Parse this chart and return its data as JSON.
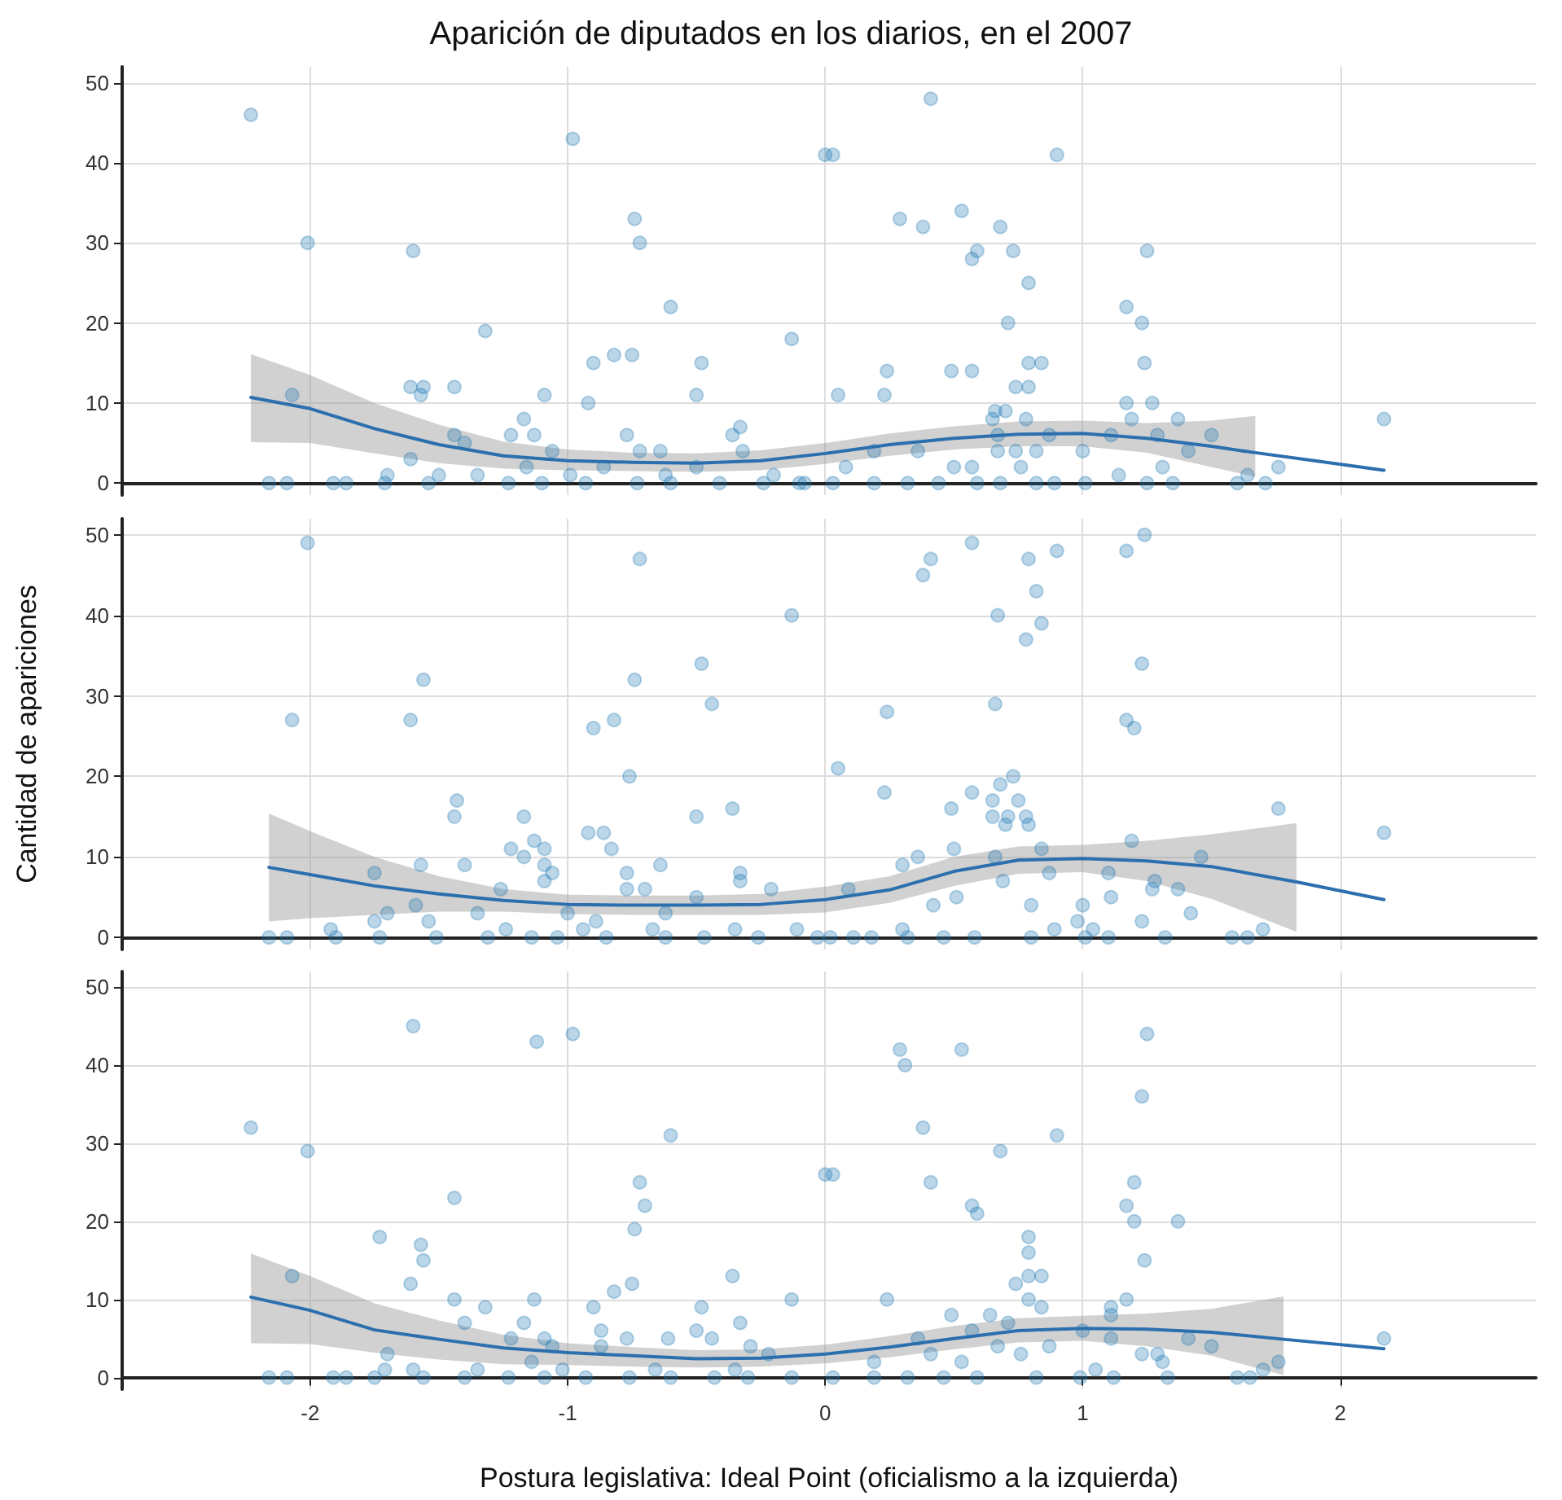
{
  "chart_data": [
    {
      "type": "scatter",
      "title": "Aparición de diputados en los diarios, en el 2007",
      "xlim": [
        -2.73,
        2.76
      ],
      "xticks": [
        -2,
        -1,
        0,
        1,
        2
      ],
      "ylim": [
        -1.5,
        52
      ],
      "yticks": [
        0,
        10,
        20,
        30,
        40,
        50
      ],
      "grid": true,
      "tick_labels": "y",
      "series": [
        {
          "color": "#1f77b4",
          "marker": "circle",
          "x": [
            -2.23,
            -0.98,
            0.0,
            -0.74,
            -0.72,
            -2.01,
            -1.6,
            -0.6,
            -1.32,
            -0.13,
            -0.82,
            -0.75,
            -0.9,
            -0.48,
            -2.07,
            -1.61,
            -1.56,
            -1.57,
            -1.44,
            -1.09,
            -0.5,
            -0.92,
            -1.17,
            -1.22,
            -1.13,
            -1.44,
            -0.77,
            -0.36,
            -0.33,
            -1.4,
            -1.61,
            -1.06,
            -0.72,
            -0.64,
            -0.32,
            -1.35,
            -1.16,
            -0.86,
            -0.5,
            -2.16,
            -2.09,
            -1.91,
            -1.86,
            -1.71,
            -1.54,
            -1.23,
            -1.1,
            -0.93,
            -0.73,
            -0.6,
            -0.41,
            -0.24,
            -0.1,
            -1.7,
            -1.5,
            -0.99,
            -0.62,
            -0.2,
            0.41,
            0.03,
            0.9,
            0.29,
            0.38,
            0.53,
            0.68,
            0.57,
            0.59,
            0.73,
            1.25,
            0.79,
            1.17,
            1.23,
            0.71,
            0.79,
            0.84,
            1.24,
            0.24,
            0.49,
            0.57,
            0.74,
            0.79,
            0.05,
            0.23,
            1.17,
            1.27,
            0.66,
            0.7,
            0.78,
            1.19,
            1.37,
            2.17,
            0.65,
            0.67,
            0.87,
            1.11,
            1.29,
            1.5,
            0.19,
            0.36,
            0.67,
            0.74,
            0.82,
            1.0,
            1.41,
            0.08,
            0.5,
            0.57,
            0.76,
            1.31,
            1.76,
            1.64,
            1.14,
            -0.08,
            0.03,
            0.19,
            0.32,
            0.44,
            0.59,
            0.68,
            0.82,
            0.89,
            1.01,
            1.25,
            1.35,
            1.6,
            1.71
          ],
          "values": [
            46,
            43,
            41,
            33,
            30,
            30,
            29,
            22,
            19,
            18,
            16,
            16,
            15,
            15,
            11,
            12,
            12,
            11,
            12,
            11,
            11,
            10,
            8,
            6,
            6,
            6,
            6,
            6,
            7,
            5,
            3,
            4,
            4,
            4,
            4,
            1,
            2,
            2,
            2,
            0,
            0,
            0,
            0,
            0,
            0,
            0,
            0,
            0,
            0,
            0,
            0,
            0,
            0,
            1,
            1,
            1,
            1,
            1,
            48,
            41,
            41,
            33,
            32,
            34,
            32,
            28,
            29,
            29,
            29,
            25,
            22,
            20,
            20,
            15,
            15,
            15,
            14,
            14,
            14,
            12,
            12,
            11,
            11,
            10,
            10,
            9,
            9,
            8,
            8,
            8,
            8,
            8,
            6,
            6,
            6,
            6,
            6,
            4,
            4,
            4,
            4,
            4,
            4,
            4,
            2,
            2,
            2,
            2,
            2,
            2,
            1,
            1,
            0,
            0,
            0,
            0,
            0,
            0,
            0,
            0,
            0,
            0,
            0,
            0,
            0,
            0
          ]
        },
        {
          "type": "line",
          "color": "#2c6fae",
          "x": [
            -2.23,
            -2,
            -1.75,
            -1.5,
            -1.25,
            -1,
            -0.75,
            -0.5,
            -0.25,
            0,
            0.25,
            0.5,
            0.75,
            1,
            1.25,
            1.5,
            1.67,
            1.9,
            2.17
          ],
          "values": [
            10.7,
            9.3,
            6.8,
            4.8,
            3.4,
            2.8,
            2.6,
            2.5,
            2.8,
            3.7,
            4.8,
            5.6,
            6.1,
            6.2,
            5.6,
            4.6,
            3.8,
            2.8,
            1.6
          ],
          "upper": [
            16.1,
            13.5,
            10,
            7.3,
            5.2,
            4.2,
            3.8,
            3.7,
            4.1,
            5.0,
            6.2,
            7.1,
            7.7,
            7.8,
            7.5,
            7.8,
            8.4,
            null,
            null
          ],
          "lower": [
            5.1,
            5.0,
            3.7,
            2.5,
            1.8,
            1.6,
            1.5,
            1.4,
            1.6,
            2.4,
            3.4,
            4.2,
            4.6,
            4.6,
            3.8,
            2.0,
            0.8,
            null,
            null
          ]
        }
      ]
    },
    {
      "type": "scatter",
      "ylabel": "Cantidad de apariciones",
      "xlim": [
        -2.73,
        2.76
      ],
      "xticks": [
        -2,
        -1,
        0,
        1,
        2
      ],
      "ylim": [
        -1.5,
        52
      ],
      "yticks": [
        0,
        10,
        20,
        30,
        40,
        50
      ],
      "grid": true,
      "tick_labels": "y",
      "series": [
        {
          "color": "#1f77b4",
          "marker": "circle",
          "x": [
            -2.01,
            -0.72,
            -0.13,
            -1.56,
            -0.74,
            -0.48,
            -0.44,
            -2.07,
            -1.61,
            -0.9,
            -0.82,
            -0.76,
            -1.43,
            -1.44,
            -1.17,
            -0.5,
            -0.36,
            -0.92,
            -0.86,
            -0.83,
            -1.22,
            -1.13,
            -1.09,
            -1.17,
            -1.57,
            -1.4,
            -0.64,
            -1.75,
            -1.09,
            -1.06,
            -1.09,
            -0.77,
            -0.33,
            -0.33,
            -1.26,
            -0.77,
            -0.7,
            -0.21,
            -0.5,
            -1.35,
            -1.7,
            -1.59,
            -1.0,
            -1.75,
            -1.54,
            -0.89,
            -0.62,
            -2.16,
            -2.09,
            -1.9,
            -1.73,
            -1.51,
            -1.31,
            -1.14,
            -1.04,
            -0.85,
            -0.62,
            -0.47,
            -0.26,
            -0.03,
            -1.92,
            -1.24,
            -0.94,
            -0.67,
            -0.35,
            -0.11,
            1.24,
            1.17,
            0.57,
            0.41,
            0.38,
            0.79,
            0.9,
            0.82,
            0.67,
            0.84,
            0.78,
            1.23,
            0.24,
            0.66,
            1.17,
            1.2,
            0.05,
            0.23,
            0.73,
            0.68,
            0.57,
            0.49,
            0.65,
            0.65,
            0.71,
            0.75,
            0.78,
            0.79,
            0.7,
            1.76,
            2.17,
            1.19,
            0.5,
            0.84,
            1.46,
            0.36,
            0.3,
            0.66,
            0.87,
            1.1,
            0.09,
            1.28,
            1.27,
            1.37,
            0.69,
            0.51,
            0.8,
            1.0,
            1.11,
            1.42,
            1.23,
            1.7,
            0.98,
            0.42,
            0.02,
            0.11,
            0.18,
            0.32,
            0.46,
            0.58,
            0.8,
            1.01,
            1.1,
            1.32,
            1.58,
            1.64,
            0.3,
            0.89,
            1.04
          ],
          "values": [
            49,
            47,
            40,
            32,
            32,
            34,
            29,
            27,
            27,
            26,
            27,
            20,
            17,
            15,
            15,
            15,
            16,
            13,
            13,
            11,
            11,
            12,
            11,
            10,
            9,
            9,
            9,
            8,
            9,
            8,
            7,
            8,
            8,
            7,
            6,
            6,
            6,
            6,
            5,
            3,
            3,
            4,
            3,
            2,
            2,
            2,
            3,
            0,
            0,
            0,
            0,
            0,
            0,
            0,
            0,
            0,
            0,
            0,
            0,
            0,
            1,
            1,
            1,
            1,
            1,
            1,
            50,
            48,
            49,
            47,
            45,
            47,
            48,
            43,
            40,
            39,
            37,
            34,
            28,
            29,
            27,
            26,
            21,
            18,
            20,
            19,
            18,
            16,
            17,
            15,
            15,
            17,
            15,
            14,
            14,
            16,
            13,
            12,
            11,
            11,
            10,
            10,
            9,
            10,
            8,
            8,
            6,
            7,
            6,
            6,
            7,
            5,
            4,
            4,
            5,
            3,
            2,
            1,
            2,
            4,
            0,
            0,
            0,
            0,
            0,
            0,
            0,
            0,
            0,
            0,
            0,
            0,
            1,
            1,
            1
          ]
        },
        {
          "type": "line",
          "color": "#2c6fae",
          "x": [
            -2.16,
            -2,
            -1.75,
            -1.5,
            -1.25,
            -1,
            -0.75,
            -0.5,
            -0.25,
            0,
            0.25,
            0.5,
            0.75,
            1,
            1.25,
            1.5,
            1.83,
            2.17
          ],
          "values": [
            8.7,
            7.8,
            6.4,
            5.4,
            4.6,
            4.1,
            4.0,
            4.0,
            4.1,
            4.7,
            5.9,
            8.2,
            9.6,
            9.8,
            9.5,
            8.8,
            6.9,
            4.7
          ],
          "upper": [
            15.4,
            13.2,
            10.0,
            7.6,
            6.0,
            5.3,
            5.2,
            5.2,
            5.4,
            6.3,
            7.6,
            10.0,
            11.3,
            11.5,
            12.0,
            12.8,
            14.2,
            null
          ],
          "lower": [
            2.0,
            2.4,
            2.8,
            3.2,
            3.2,
            2.9,
            2.8,
            2.8,
            2.8,
            3.1,
            4.3,
            6.4,
            7.9,
            8.1,
            7.0,
            4.8,
            0.7,
            null
          ]
        }
      ]
    },
    {
      "type": "scatter",
      "xlabel": "Postura legislativa: Ideal Point (oficialismo a la izquierda)",
      "xlim": [
        -2.73,
        2.76
      ],
      "xticks": [
        -2,
        -1,
        0,
        1,
        2
      ],
      "ylim": [
        -1.5,
        52
      ],
      "yticks": [
        0,
        10,
        20,
        30,
        40,
        50
      ],
      "grid": true,
      "series": [
        {
          "color": "#1f77b4",
          "marker": "circle",
          "x": [
            -1.6,
            -1.12,
            -0.98,
            -2.23,
            -2.01,
            -0.6,
            -1.44,
            -0.72,
            -0.7,
            -0.74,
            0.0,
            -1.73,
            -1.57,
            -1.56,
            -2.07,
            -1.61,
            -0.36,
            -0.82,
            -0.75,
            -1.44,
            -1.13,
            -0.13,
            -1.32,
            -0.9,
            -0.48,
            -1.4,
            -1.17,
            -0.33,
            -0.87,
            -0.5,
            -1.22,
            -1.09,
            -0.77,
            -0.61,
            -0.44,
            -1.06,
            -0.87,
            -0.29,
            -1.7,
            -1.14,
            -0.22,
            -2.16,
            -2.09,
            -1.91,
            -1.86,
            -1.75,
            -1.56,
            -1.4,
            -1.23,
            -1.09,
            -0.93,
            -0.76,
            -0.6,
            -0.43,
            -0.3,
            -0.13,
            -1.71,
            -1.6,
            -1.35,
            -1.02,
            -0.66,
            -0.35,
            1.25,
            0.29,
            0.31,
            0.53,
            1.23,
            0.38,
            0.9,
            0.68,
            0.03,
            0.41,
            1.2,
            0.57,
            0.59,
            1.17,
            1.2,
            1.37,
            0.79,
            0.79,
            1.24,
            0.74,
            0.79,
            0.84,
            0.24,
            0.79,
            0.84,
            1.17,
            1.11,
            1.11,
            0.49,
            0.64,
            0.71,
            0.57,
            1.0,
            1.11,
            1.41,
            1.5,
            2.17,
            0.36,
            0.41,
            0.67,
            0.76,
            0.87,
            1.23,
            1.29,
            1.76,
            1.7,
            1.31,
            0.53,
            0.19,
            1.05,
            0.03,
            0.19,
            0.32,
            0.46,
            0.59,
            0.82,
            0.99,
            1.12,
            1.33,
            1.6,
            1.65
          ],
          "values": [
            45,
            43,
            44,
            32,
            29,
            31,
            23,
            25,
            22,
            19,
            26,
            18,
            17,
            15,
            13,
            12,
            13,
            11,
            12,
            10,
            10,
            10,
            9,
            9,
            9,
            7,
            7,
            7,
            6,
            6,
            5,
            5,
            5,
            5,
            5,
            4,
            4,
            4,
            3,
            2,
            3,
            0,
            0,
            0,
            0,
            0,
            0,
            0,
            0,
            0,
            0,
            0,
            0,
            0,
            0,
            0,
            1,
            1,
            1,
            1,
            1,
            1,
            44,
            42,
            40,
            42,
            36,
            32,
            31,
            29,
            26,
            25,
            25,
            22,
            21,
            22,
            20,
            20,
            18,
            16,
            15,
            12,
            13,
            13,
            10,
            10,
            9,
            10,
            9,
            8,
            8,
            8,
            7,
            6,
            6,
            5,
            5,
            4,
            5,
            5,
            3,
            4,
            3,
            4,
            3,
            3,
            2,
            1,
            2,
            2,
            2,
            1,
            0,
            0,
            0,
            0,
            0,
            0,
            0,
            0,
            0,
            0,
            0
          ]
        },
        {
          "type": "line",
          "color": "#2c6fae",
          "x": [
            -2.23,
            -2,
            -1.75,
            -1.5,
            -1.25,
            -1,
            -0.75,
            -0.5,
            -0.25,
            0,
            0.25,
            0.5,
            0.75,
            1,
            1.25,
            1.5,
            1.78,
            2.17
          ],
          "values": [
            10.3,
            8.6,
            6.1,
            4.9,
            3.8,
            3.2,
            2.8,
            2.4,
            2.5,
            3.0,
            3.9,
            5.0,
            6.0,
            6.3,
            6.2,
            5.8,
            4.9,
            3.7
          ],
          "upper": [
            15.9,
            13.0,
            9.5,
            7.3,
            5.5,
            4.4,
            3.9,
            3.5,
            3.6,
            4.2,
            5.3,
            6.6,
            7.6,
            7.9,
            8.2,
            8.8,
            10.4,
            null
          ],
          "lower": [
            4.4,
            4.3,
            3.2,
            2.3,
            1.7,
            1.6,
            1.4,
            1.3,
            1.4,
            1.8,
            2.6,
            3.6,
            4.5,
            4.7,
            4.0,
            2.8,
            0.3,
            null
          ]
        }
      ]
    }
  ]
}
